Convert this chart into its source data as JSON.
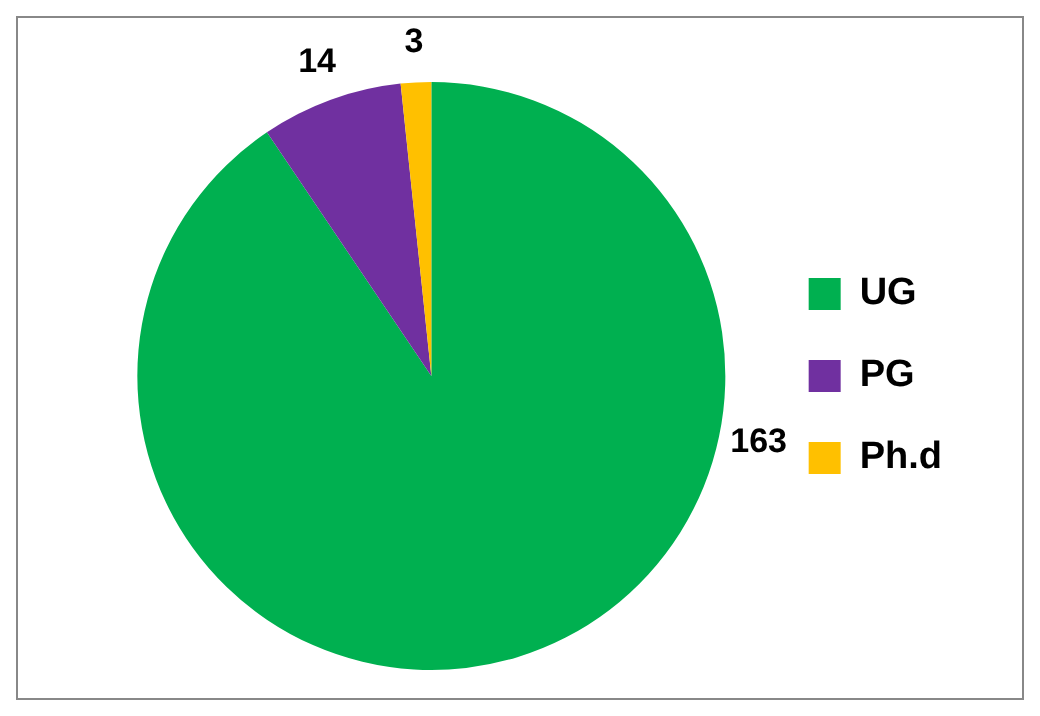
{
  "chart_data": {
    "type": "pie",
    "categories": [
      "UG",
      "PG",
      "Ph.d"
    ],
    "values": [
      163,
      14,
      3
    ],
    "colors": [
      "#00b050",
      "#7030a0",
      "#ffc000"
    ],
    "data_labels": true,
    "legend": "right"
  }
}
